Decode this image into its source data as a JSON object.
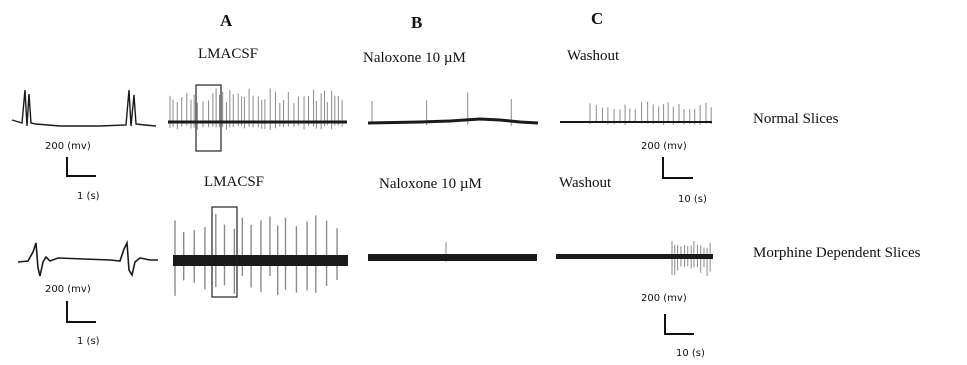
{
  "panels": [
    {
      "letter": "A",
      "condition": "LMACSF",
      "condition_row2": "LMACSF"
    },
    {
      "letter": "B",
      "condition": "Naloxone 10 µM",
      "condition_row2": "Naloxone 10 µM"
    },
    {
      "letter": "C",
      "condition": "Washout",
      "condition_row2": "Washout"
    }
  ],
  "rows": [
    {
      "label": "Normal Slices"
    },
    {
      "label": "Morphine Dependent Slices"
    }
  ],
  "scale_bars": {
    "row1_left": {
      "amplitude": "200 (mv)",
      "time": "1 (s)"
    },
    "row1_right": {
      "amplitude": "200 (mv)",
      "time": "10 (s)"
    },
    "row2_left": {
      "amplitude": "200 (mv)",
      "time": "1 (s)"
    },
    "row2_right": {
      "amplitude": "200 (mv)",
      "time": "10 (s)"
    }
  },
  "colors": {
    "trace": "#1a1a1a",
    "spike": "#8a8a8a",
    "box": "#222222"
  }
}
